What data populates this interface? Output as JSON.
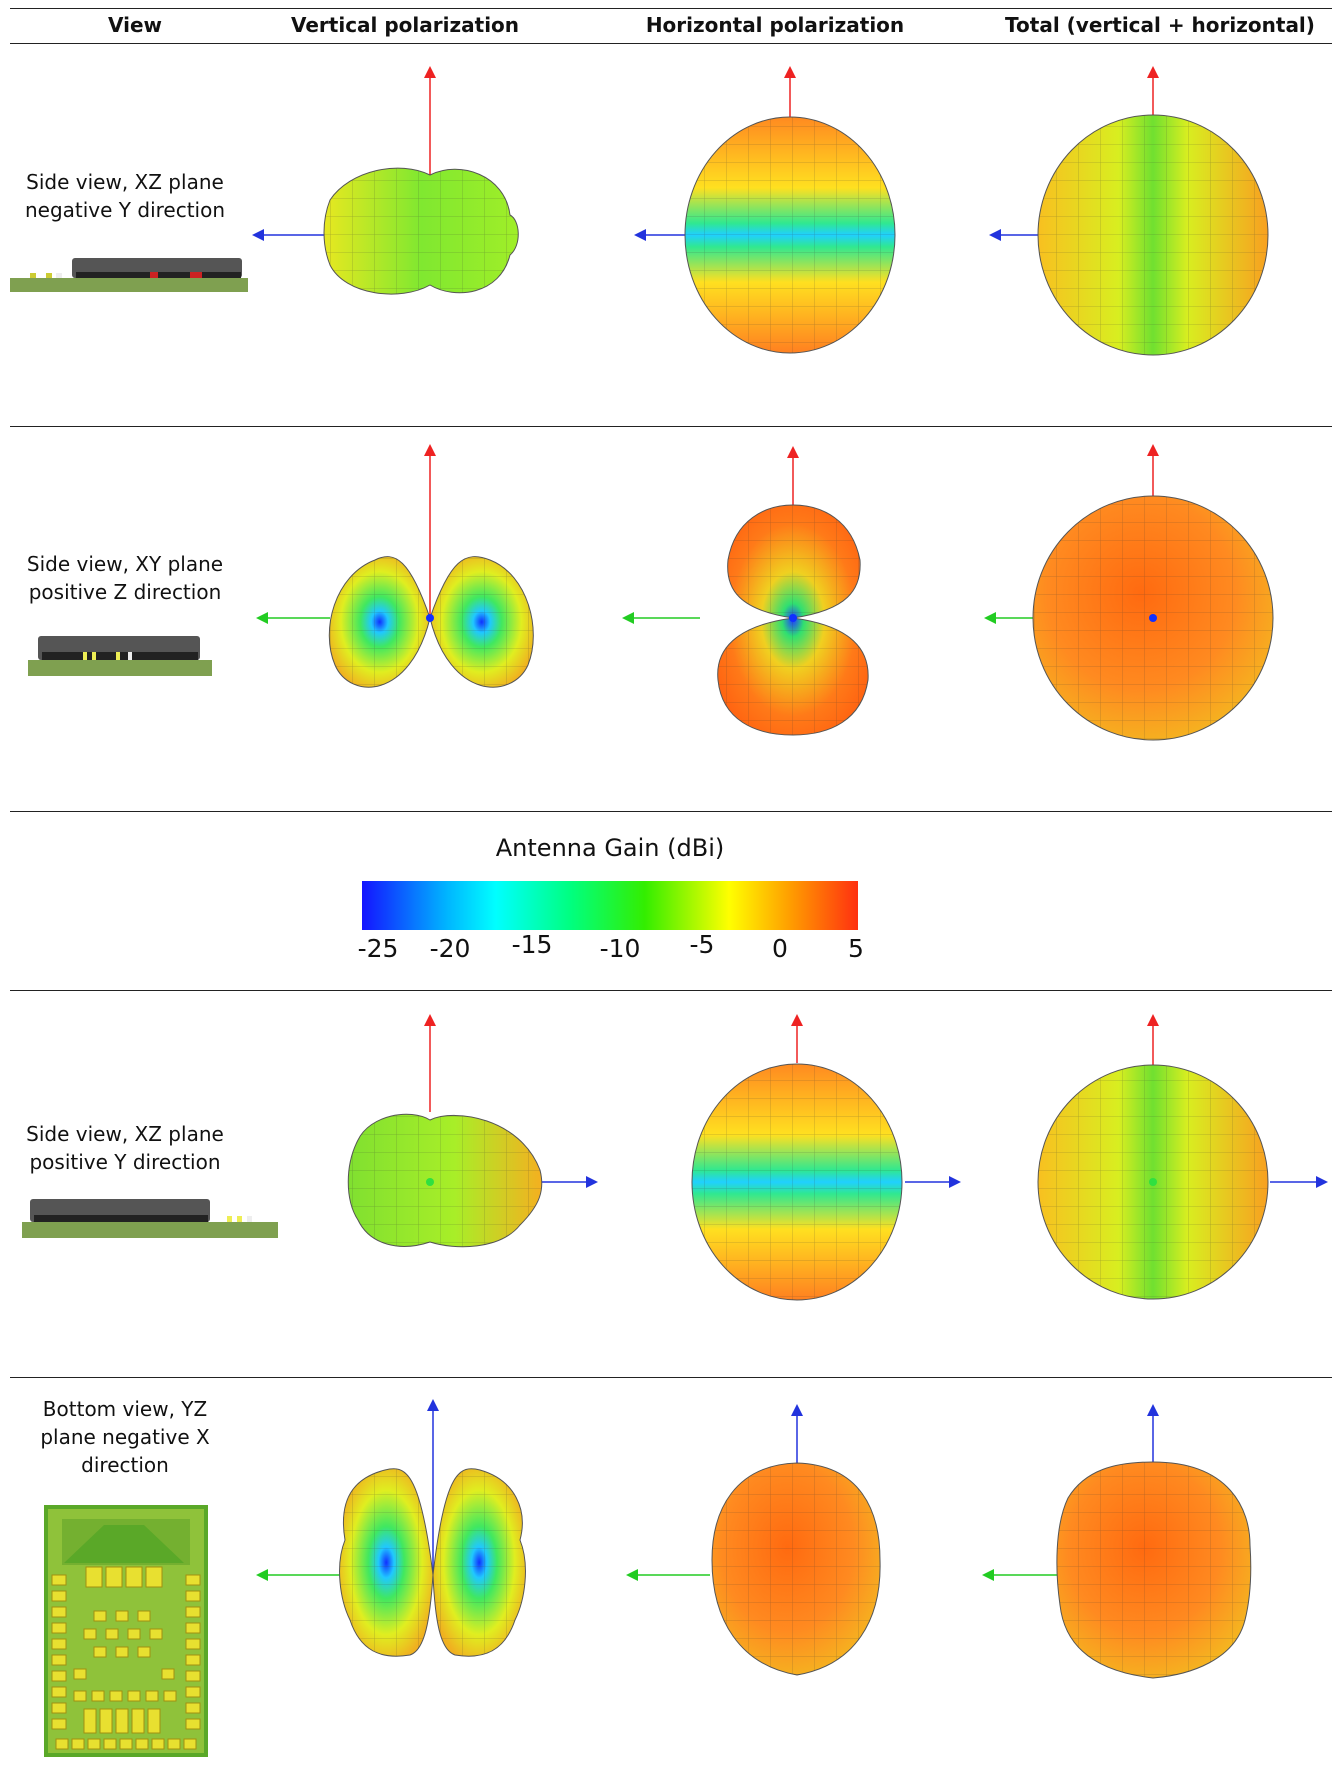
{
  "header": {
    "columns": [
      "View",
      "Vertical polarization",
      "Horizontal polarization",
      "Total (vertical + horizontal)"
    ]
  },
  "rows": [
    {
      "label_lines": [
        "Side view, XZ plane",
        "negative Y direction"
      ]
    },
    {
      "label_lines": [
        "Side view, XY plane",
        "positive Z direction"
      ]
    },
    {
      "label_lines": [
        "Side view, XZ plane",
        "positive Y direction"
      ]
    },
    {
      "label_lines": [
        "Bottom view, YZ",
        "plane negative X",
        "direction"
      ]
    }
  ],
  "legend": {
    "title": "Antenna Gain (dBi)",
    "ticks": [
      "-25",
      "-20",
      "-15",
      "-10",
      "-5",
      "0",
      "5"
    ]
  },
  "colors": {
    "scale_low": "#1414ff",
    "scale_mid": "#33ee00",
    "scale_high": "#ff3010",
    "axis_x": "#2233dd",
    "axis_y": "#22cc22",
    "axis_z": "#ee2222",
    "pcb": "#7fa050"
  }
}
